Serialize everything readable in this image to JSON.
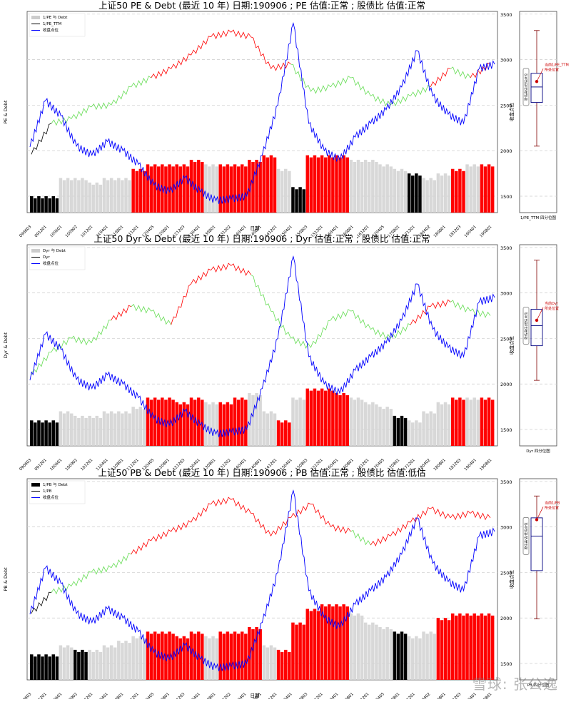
{
  "charts": [
    {
      "title": "上证50 PE & Debt (最近 10 年) 日期:190906 ; PE 估值:正常 ; 股债比 估值:正常",
      "ylabel": "PE & Debt",
      "ylabel_right": "收盘点位",
      "xlabel": "日期",
      "legend": [
        "1/PE 与 Debt",
        "1/PE_TTM",
        "收盘点位"
      ],
      "box_label": "1/PE_TTM 四分位图",
      "box_side_label": "股估高估|低估点位",
      "box_annotation": [
        "当前1/PE_TTM",
        "所处位置"
      ]
    },
    {
      "title": "上证50 Dyr & Debt (最近 10 年) 日期:190906 ; Dyr 估值:正常 ; 股债比 估值:正常",
      "ylabel": "Dyr & Debt",
      "ylabel_right": "收盘点位",
      "xlabel": "",
      "legend": [
        "Dyr 与 Debt",
        "Dyr",
        "收盘点位"
      ],
      "box_label": "Dyr 四分位图",
      "box_side_label": "股估高估|低估点位",
      "box_annotation": [
        "当前Dyr",
        "所处位置"
      ]
    },
    {
      "title": "上证50 PB & Debt (最近 10 年) 日期:190906 ; PB 估值:正常 ; 股债比 估值:低估",
      "ylabel": "PB & Debt",
      "ylabel_right": "收盘点位",
      "xlabel": "日期",
      "legend": [
        "1/PB 与 Debt",
        "1/PB",
        "收盘点位"
      ],
      "box_label": "PB 四分位图",
      "box_side_label": "股估高估|低估点位",
      "box_annotation": [
        "当前1/PB",
        "所处位置"
      ]
    }
  ],
  "chart_data": [
    {
      "type": "bar",
      "x_ticks": [
        "090603",
        "091201",
        "100601",
        "100902",
        "101201",
        "110401",
        "110801",
        "111201",
        "120405",
        "120801",
        "121203",
        "130401",
        "130801",
        "131202",
        "140401",
        "140801",
        "141201",
        "150401",
        "150803",
        "151201",
        "160401",
        "160801",
        "161201",
        "170405",
        "170801",
        "171201",
        "180402",
        "180801",
        "181203",
        "190401",
        "190801"
      ],
      "right_ticks": [
        3500,
        3000,
        2500,
        2000,
        1500
      ],
      "right_ylim": [
        1320,
        3530
      ],
      "close": [
        2040,
        2550,
        2380,
        2050,
        1950,
        2100,
        2000,
        1850,
        1620,
        1550,
        1700,
        1550,
        1450,
        1470,
        1500,
        1950,
        2500,
        3400,
        2300,
        2000,
        1900,
        2150,
        2300,
        2450,
        2700,
        3100,
        2600,
        2400,
        2300,
        2900,
        2950
      ],
      "ratio_line": [
        1960,
        2300,
        2350,
        2480,
        2500,
        2700,
        2800,
        2900,
        3050,
        3250,
        3300,
        3250,
        2900,
        2950,
        2650,
        2700,
        2800,
        2600,
        2500,
        2600,
        2700,
        2900,
        2800,
        2950
      ],
      "bars": [
        1500,
        1500,
        1700,
        1700,
        1650,
        1700,
        1700,
        1800,
        1850,
        1850,
        1850,
        1900,
        1850,
        1850,
        1850,
        1900,
        1950,
        1800,
        1600,
        1950,
        1950,
        1950,
        1900,
        1900,
        1850,
        1800,
        1750,
        1700,
        1750,
        1800,
        1850,
        1850
      ],
      "bar_classes": [
        "black",
        "black",
        "gray",
        "gray",
        "gray",
        "gray",
        "gray",
        "red",
        "red",
        "red",
        "red",
        "red",
        "gray",
        "red",
        "red",
        "red",
        "red",
        "gray",
        "black",
        "red",
        "red",
        "red",
        "gray",
        "gray",
        "gray",
        "gray",
        "black",
        "gray",
        "gray",
        "red",
        "gray",
        "red"
      ],
      "box": {
        "min": 2050,
        "q1": 2530,
        "median": 2700,
        "q3": 2850,
        "max": 3320,
        "current": 2760
      }
    },
    {
      "type": "bar",
      "x_ticks": [
        "090603",
        "091201",
        "100601",
        "100902",
        "101201",
        "110401",
        "110801",
        "111201",
        "120405",
        "120801",
        "121203",
        "130401",
        "130801",
        "131202",
        "140401",
        "140801",
        "141201",
        "150401",
        "150803",
        "151201",
        "160401",
        "160801",
        "161201",
        "170405",
        "170801",
        "171201",
        "180402",
        "180801",
        "181203",
        "190401",
        "190801"
      ],
      "right_ticks": [
        3500,
        3000,
        2500,
        2000,
        1500
      ],
      "right_ylim": [
        1320,
        3530
      ],
      "close": [
        2040,
        2550,
        2380,
        2050,
        1950,
        2100,
        2000,
        1850,
        1620,
        1550,
        1700,
        1550,
        1450,
        1470,
        1500,
        1950,
        2500,
        3400,
        2300,
        2000,
        1900,
        2150,
        2300,
        2450,
        2700,
        3100,
        2600,
        2400,
        2300,
        2900,
        2950
      ],
      "ratio_line": [
        2100,
        2350,
        2500,
        2450,
        2700,
        2850,
        2800,
        2650,
        3100,
        3250,
        3300,
        3200,
        2800,
        2500,
        2400,
        2700,
        2800,
        2600,
        2500,
        2650,
        2850,
        2900,
        2800,
        2750
      ],
      "bars": [
        1600,
        1600,
        1700,
        1650,
        1650,
        1700,
        1700,
        1750,
        1850,
        1850,
        1800,
        1850,
        1800,
        1800,
        1850,
        1900,
        1700,
        1600,
        1850,
        1950,
        1950,
        1900,
        1850,
        1800,
        1750,
        1650,
        1600,
        1700,
        1800,
        1850,
        1850,
        1850
      ],
      "bar_classes": [
        "black",
        "black",
        "gray",
        "gray",
        "gray",
        "gray",
        "gray",
        "gray",
        "red",
        "red",
        "red",
        "red",
        "gray",
        "red",
        "red",
        "gray",
        "gray",
        "red",
        "gray",
        "red",
        "red",
        "red",
        "gray",
        "gray",
        "gray",
        "black",
        "gray",
        "gray",
        "gray",
        "red",
        "gray",
        "red"
      ],
      "box": {
        "min": 2040,
        "q1": 2420,
        "median": 2640,
        "q3": 2820,
        "max": 3360,
        "current": 2700
      }
    },
    {
      "type": "bar",
      "x_ticks": [
        "090603",
        "091201",
        "100601",
        "100902",
        "101201",
        "110401",
        "110801",
        "111201",
        "120405",
        "120801",
        "121203",
        "130401",
        "130801",
        "131202",
        "140401",
        "140801",
        "141201",
        "150401",
        "150803",
        "151201",
        "160401",
        "160801",
        "161201",
        "170405",
        "170801",
        "171201",
        "180402",
        "180801",
        "181203",
        "190401",
        "190801"
      ],
      "right_ticks": [
        3500,
        3000,
        2500,
        2000,
        1500
      ],
      "right_ylim": [
        1320,
        3530
      ],
      "close": [
        2040,
        2550,
        2380,
        2050,
        1950,
        2100,
        2000,
        1850,
        1620,
        1550,
        1700,
        1550,
        1450,
        1470,
        1500,
        1950,
        2500,
        3400,
        2300,
        2000,
        1900,
        2150,
        2300,
        2450,
        2700,
        3100,
        2600,
        2400,
        2300,
        2900,
        2950
      ],
      "ratio_line": [
        2050,
        2280,
        2350,
        2500,
        2550,
        2700,
        2850,
        2950,
        3050,
        3250,
        3300,
        3150,
        2900,
        3100,
        3250,
        3000,
        2950,
        2800,
        2900,
        3050,
        3200,
        3100,
        3150,
        3100
      ],
      "bars": [
        1600,
        1600,
        1700,
        1650,
        1650,
        1700,
        1750,
        1800,
        1850,
        1850,
        1800,
        1850,
        1800,
        1850,
        1850,
        1900,
        1700,
        1650,
        1950,
        2100,
        2150,
        2150,
        2050,
        1950,
        1900,
        1850,
        1800,
        1850,
        2000,
        2050,
        2050,
        2050
      ],
      "bar_classes": [
        "black",
        "black",
        "gray",
        "black",
        "gray",
        "gray",
        "gray",
        "gray",
        "red",
        "red",
        "red",
        "red",
        "gray",
        "red",
        "red",
        "red",
        "gray",
        "red",
        "red",
        "red",
        "red",
        "red",
        "gray",
        "gray",
        "gray",
        "black",
        "gray",
        "gray",
        "red",
        "red",
        "red",
        "red"
      ],
      "box": {
        "min": 1990,
        "q1": 2520,
        "median": 2900,
        "q3": 3100,
        "max": 3340,
        "current": 3080
      }
    }
  ],
  "colors": {
    "close": "#0000ff",
    "ratio_up": "#ff0000",
    "ratio_mid": "#66dd55",
    "ratio_low": "#000000",
    "bar_red": "#ff0000",
    "bar_gray": "#d4d4d4",
    "bar_black": "#000000",
    "box": "#000080",
    "whisker": "#800000",
    "current": "#cc0000"
  },
  "watermark": "雪球: 张公逸"
}
